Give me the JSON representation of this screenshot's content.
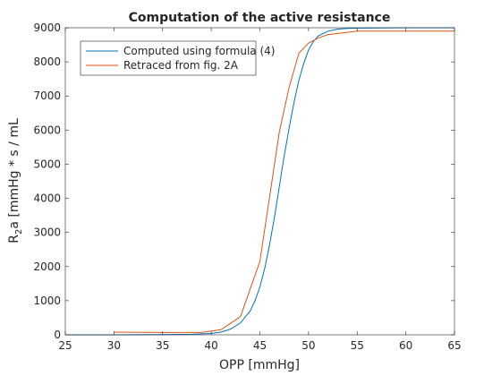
{
  "chart_data": {
    "type": "line",
    "title": "Computation of the active resistance",
    "xlabel": "OPP [mmHg]",
    "ylabel": "R2a [mmHg * s / mL",
    "ylabel_parts": {
      "pre": "R",
      "sub": "2",
      "post": "a [mmHg * s / mL"
    },
    "xlim": [
      25,
      65
    ],
    "ylim": [
      0,
      9000
    ],
    "xticks": [
      25,
      30,
      35,
      40,
      45,
      50,
      55,
      60,
      65
    ],
    "yticks": [
      0,
      1000,
      2000,
      3000,
      4000,
      5000,
      6000,
      7000,
      8000,
      9000
    ],
    "grid": false,
    "legend_position": "top-left",
    "series": [
      {
        "name": "Computed using formula (4)",
        "color": "#0072BD",
        "x": [
          25,
          30,
          35,
          38,
          40,
          41,
          42,
          43,
          44,
          44.5,
          45,
          45.5,
          46,
          46.5,
          47,
          47.5,
          48,
          48.5,
          49,
          49.5,
          50,
          50.5,
          51,
          52,
          53,
          54,
          55,
          57,
          60,
          65
        ],
        "y": [
          0,
          0,
          5,
          15,
          40,
          80,
          170,
          350,
          700,
          1000,
          1400,
          1950,
          2650,
          3450,
          4350,
          5250,
          6050,
          6800,
          7450,
          7950,
          8350,
          8600,
          8760,
          8900,
          8960,
          8980,
          8990,
          8995,
          9000,
          9000
        ]
      },
      {
        "name": "Retraced from fig. 2A",
        "color": "#D95319",
        "x": [
          30,
          35,
          39,
          41,
          43,
          45,
          47,
          48,
          49,
          50,
          51,
          52,
          55,
          60,
          65
        ],
        "y": [
          80,
          70,
          70,
          150,
          530,
          2150,
          5950,
          7250,
          8250,
          8550,
          8700,
          8800,
          8900,
          8900,
          8900
        ]
      }
    ]
  }
}
